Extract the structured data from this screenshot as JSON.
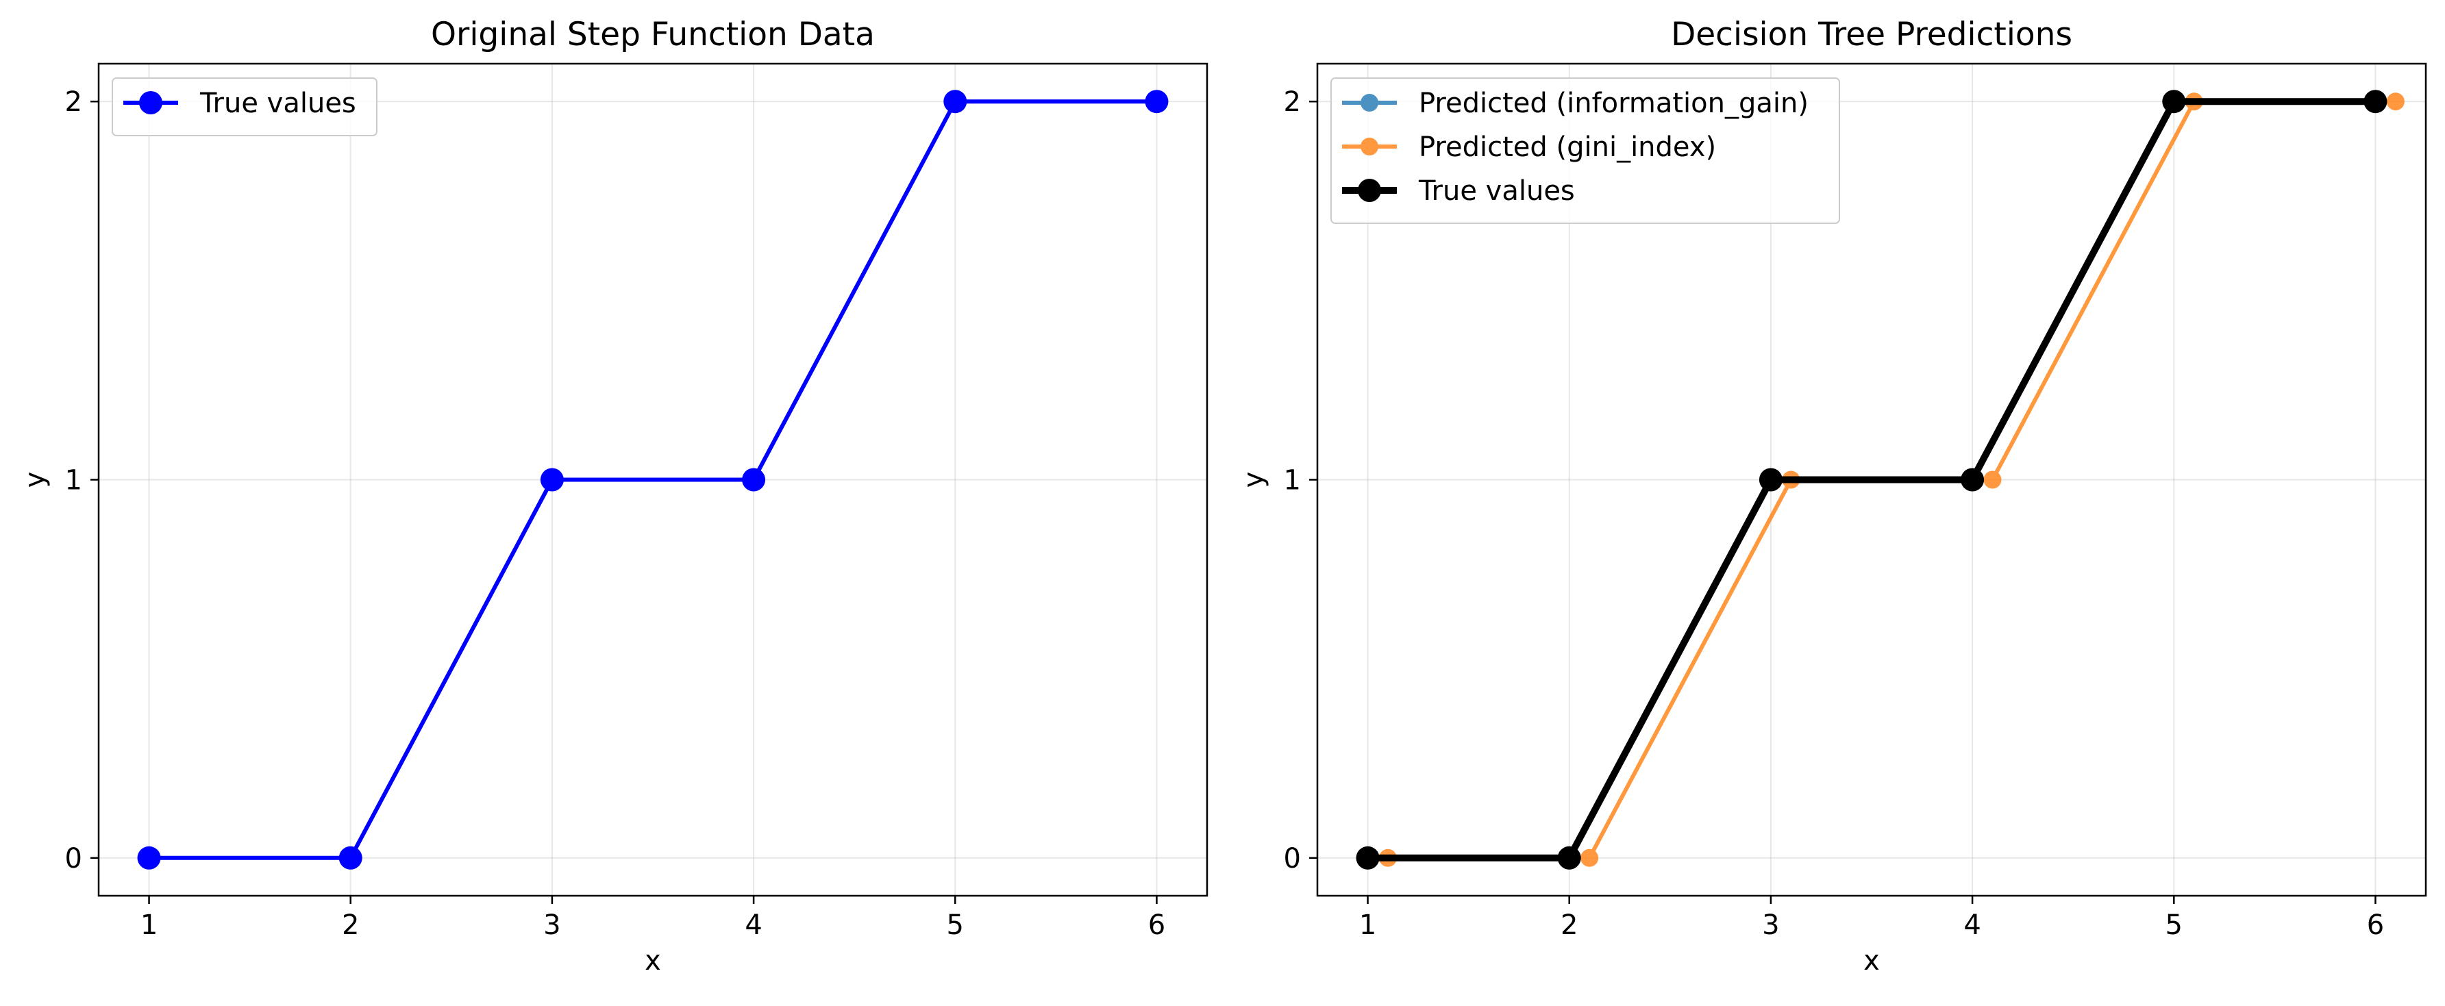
{
  "chart_data": [
    {
      "type": "line",
      "title": "Original Step Function Data",
      "xlabel": "x",
      "ylabel": "y",
      "xlim": [
        0.75,
        6.25
      ],
      "ylim": [
        -0.1,
        2.1
      ],
      "xticks": [
        1,
        2,
        3,
        4,
        5,
        6
      ],
      "yticks": [
        0,
        1,
        2
      ],
      "grid": true,
      "legend_position": "upper-left",
      "series": [
        {
          "name": "True values",
          "color": "#0000ff",
          "x": [
            1,
            2,
            3,
            4,
            5,
            6
          ],
          "y": [
            0,
            0,
            1,
            1,
            2,
            2
          ]
        }
      ]
    },
    {
      "type": "line",
      "title": "Decision Tree Predictions",
      "xlabel": "x",
      "ylabel": "y",
      "xlim": [
        0.75,
        6.25
      ],
      "ylim": [
        -0.1,
        2.1
      ],
      "xticks": [
        1,
        2,
        3,
        4,
        5,
        6
      ],
      "yticks": [
        0,
        1,
        2
      ],
      "grid": true,
      "legend_position": "upper-left",
      "series": [
        {
          "name": "Predicted (information_gain)",
          "color": "#1f77b4",
          "x": [
            1,
            2,
            3,
            4,
            5,
            6
          ],
          "y": [
            0,
            0,
            1,
            1,
            2,
            2
          ]
        },
        {
          "name": "Predicted (gini_index)",
          "color": "#ff7f0e",
          "x": [
            1.1,
            2.1,
            3.1,
            4.1,
            5.1,
            6.1
          ],
          "y": [
            0,
            0,
            1,
            1,
            2,
            2
          ]
        },
        {
          "name": "True values",
          "color": "#000000",
          "x": [
            1,
            2,
            3,
            4,
            5,
            6
          ],
          "y": [
            0,
            0,
            1,
            1,
            2,
            2
          ]
        }
      ]
    }
  ]
}
